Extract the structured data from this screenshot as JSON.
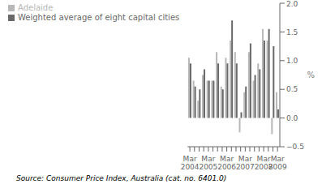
{
  "chart_data": {
    "type": "bar",
    "categories": [
      "Mar\n2004",
      null,
      null,
      null,
      "Mar\n2005",
      null,
      null,
      null,
      "Mar\n2006",
      null,
      null,
      null,
      "Mar\n2007",
      null,
      null,
      null,
      "Mar\n2008",
      null,
      null,
      "Mar\n2009"
    ],
    "series": [
      {
        "name": "Adelaide",
        "color": "#b8b8b8",
        "values": [
          1.05,
          0.65,
          0.3,
          0.75,
          0.65,
          0.65,
          1.15,
          0.55,
          1.05,
          1.35,
          1.15,
          -0.25,
          0.45,
          1.15,
          0.65,
          0.95,
          1.55,
          1.35,
          -0.28,
          0.45
        ]
      },
      {
        "name": "Weighted average of eight capital cities",
        "color": "#696969",
        "values": [
          0.95,
          0.55,
          0.5,
          0.85,
          0.65,
          0.65,
          0.95,
          0.5,
          0.95,
          1.7,
          0.95,
          0.1,
          0.55,
          1.3,
          0.75,
          0.85,
          1.35,
          1.55,
          1.25,
          0.15
        ]
      }
    ],
    "ylabel": "%",
    "ylim": [
      -0.5,
      2.0
    ],
    "yticks": [
      {
        "value": -0.5,
        "label": "−0.5"
      },
      {
        "value": 0,
        "label": "0.0"
      },
      0.5,
      {
        "value": 1,
        "label": "1.0"
      },
      1.5,
      {
        "value": 2,
        "label": "2.0"
      }
    ],
    "legend": "upper left",
    "grid": false,
    "annotations": [
      "Source: Consumer Price Index, Australia (cat. no. 6401.0)"
    ]
  }
}
